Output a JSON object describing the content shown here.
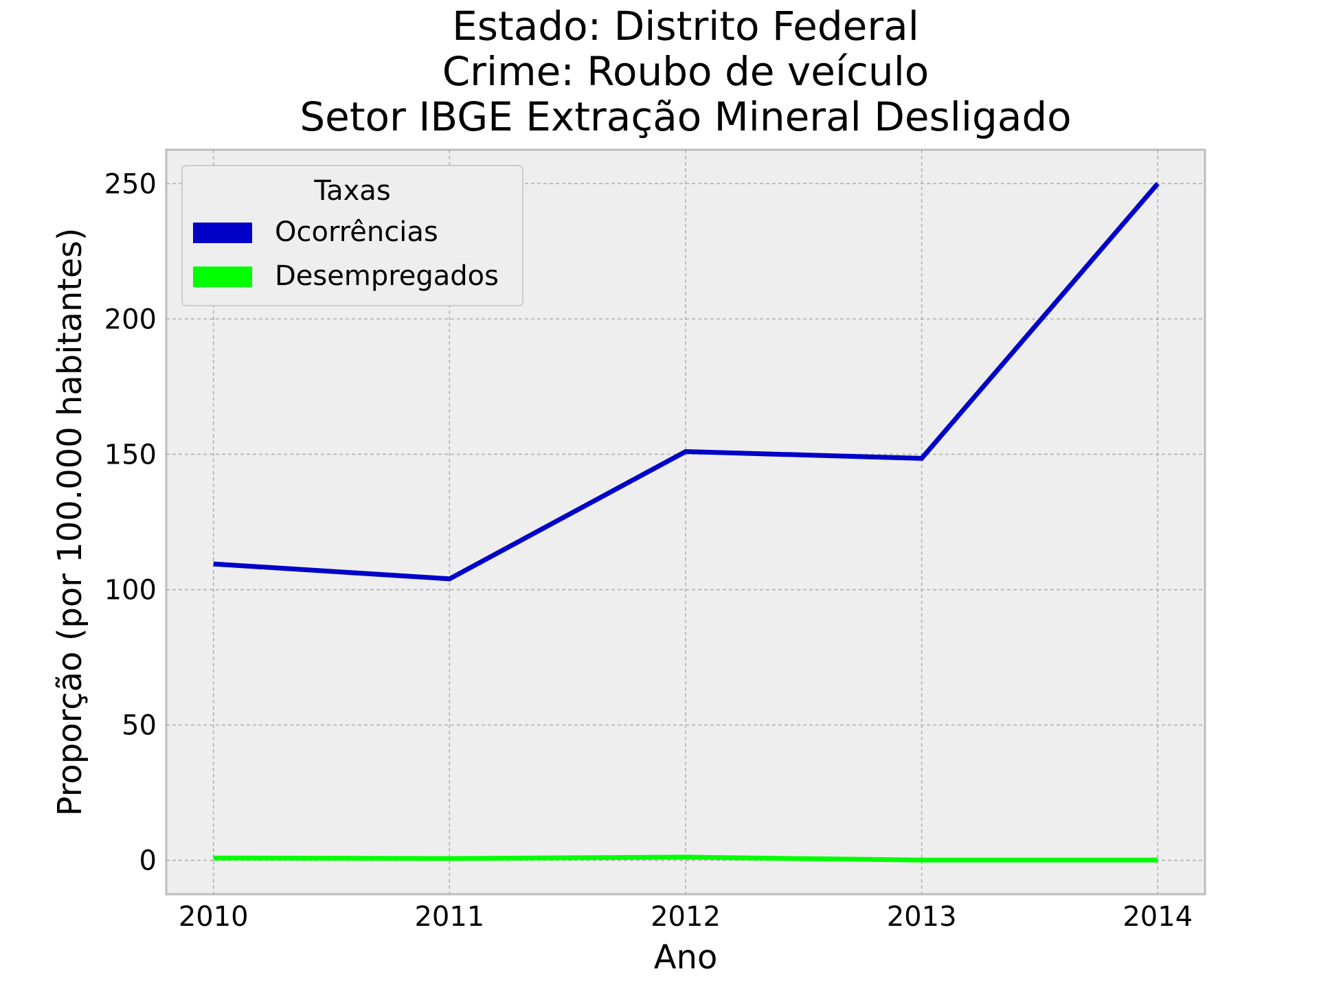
{
  "chart_data": {
    "type": "line",
    "title_lines": [
      "Estado: Distrito Federal",
      "Crime: Roubo de veículo",
      "Setor IBGE  Extração Mineral   Desligado"
    ],
    "xlabel": "Ano",
    "ylabel": "Proporção (por 100.000 habitantes)",
    "x": [
      2010,
      2011,
      2012,
      2013,
      2014
    ],
    "xlim": [
      2009.8,
      2014.2
    ],
    "ylim": [
      -12.5,
      262.5
    ],
    "yticks": [
      0,
      50,
      100,
      150,
      200,
      250
    ],
    "grid": true,
    "legend": {
      "title": "Taxas",
      "placement": "upper-left"
    },
    "series": [
      {
        "name": "Ocorrências",
        "color": "#0000c8",
        "values": [
          109.5,
          104,
          151,
          148.5,
          250
        ]
      },
      {
        "name": "Desempregados",
        "color": "#00ff00",
        "values": [
          0.9,
          0.7,
          1.2,
          0.1,
          0.1
        ]
      }
    ]
  }
}
